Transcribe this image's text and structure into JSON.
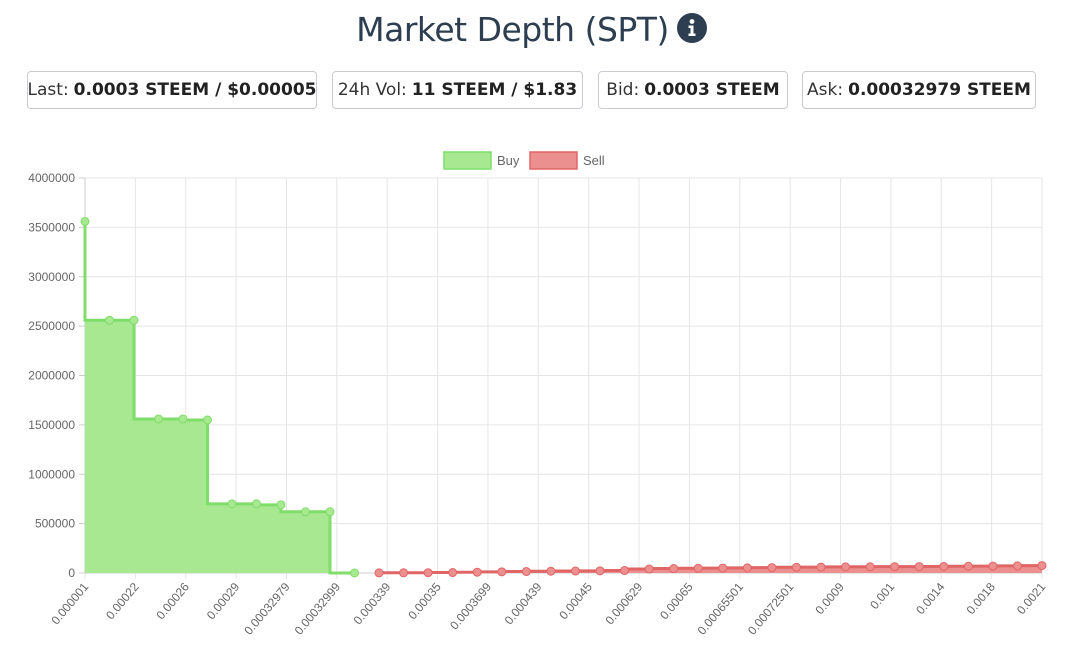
{
  "header": {
    "title": "Market Depth (SPT)",
    "info_icon": "info-circle-icon"
  },
  "stats": {
    "last_label": "Last:",
    "last_value": "0.0003 STEEM / $0.00005",
    "vol_label": "24h Vol:",
    "vol_value": "11 STEEM / $1.83",
    "bid_label": "Bid:",
    "bid_value": "0.0003 STEEM",
    "ask_label": "Ask:",
    "ask_value": "0.00032979 STEEM"
  },
  "chart_data": {
    "type": "area",
    "legend": {
      "position": "top",
      "entries": [
        "Buy",
        "Sell"
      ]
    },
    "ylim": [
      0,
      4000000
    ],
    "yticks": [
      "0",
      "500000",
      "1000000",
      "1500000",
      "2000000",
      "2500000",
      "3000000",
      "3500000",
      "4000000"
    ],
    "grid": true,
    "x_labels": [
      "0.000001",
      "0.00022",
      "0.00026",
      "0.00029",
      "0.00032979",
      "0.00032999",
      "0.000339",
      "0.00035",
      "0.0003699",
      "0.000439",
      "0.00045",
      "0.000629",
      "0.00065",
      "0.00065501",
      "0.00072501",
      "0.0009",
      "0.001",
      "0.0014",
      "0.0018",
      "0.0021"
    ],
    "series": [
      {
        "name": "Buy",
        "color": "#7fdd6a",
        "fill": "#a8e890",
        "values": [
          3560000,
          2560000,
          2560000,
          1560000,
          1560000,
          1550000,
          700000,
          700000,
          690000,
          620000,
          620000,
          0
        ]
      },
      {
        "name": "Sell",
        "color": "#e06666",
        "fill": "#ec8f8f",
        "values": [
          1000,
          2000,
          3000,
          5000,
          8000,
          12000,
          15000,
          18000,
          20000,
          22000,
          25000,
          40000,
          45000,
          48000,
          50000,
          52000,
          55000,
          58000,
          60000,
          62000,
          63000,
          64000,
          65000,
          66000,
          68000,
          70000,
          72000,
          75000
        ]
      }
    ]
  }
}
